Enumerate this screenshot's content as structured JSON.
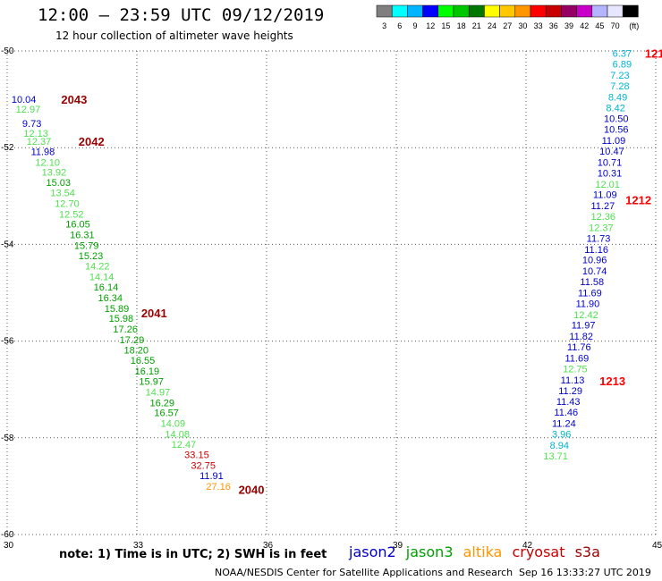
{
  "header": {
    "title": "12:00 – 23:59 UTC 09/12/2019",
    "subtitle": "12 hour collection of altimeter wave heights"
  },
  "colorbar": {
    "labels": [
      "3",
      "6",
      "9",
      "12",
      "15",
      "18",
      "21",
      "24",
      "27",
      "30",
      "33",
      "36",
      "39",
      "42",
      "45",
      "70",
      "(ft)"
    ],
    "colors": [
      "#7f7f7f",
      "#00ffff",
      "#00b4ff",
      "#0000ff",
      "#00ff00",
      "#00c800",
      "#007800",
      "#ffff00",
      "#ffc800",
      "#ff9600",
      "#ff0000",
      "#c80000",
      "#960064",
      "#c800c8",
      "#b4b4ff",
      "#e6e6ff",
      "#000000"
    ]
  },
  "footer": {
    "note": "note: 1) Time is in UTC; 2) SWH is in feet",
    "satellites": [
      {
        "name": "jason2",
        "color": "#0000cc"
      },
      {
        "name": "jason3",
        "color": "#00a000"
      },
      {
        "name": "altika",
        "color": "#ff9600"
      },
      {
        "name": "cryosat",
        "color": "#c80000"
      },
      {
        "name": "s3a",
        "color": "#960000"
      }
    ],
    "credit": "NOAA/NESDIS Center for Satellite Applications and Research",
    "generated": "Sep 16 13:33:27 UTC 2019"
  },
  "chart_data": {
    "type": "scatter",
    "xlim": [
      30,
      45
    ],
    "ylim": [
      -60,
      -50
    ],
    "x_ticks": [
      30,
      33,
      36,
      39,
      42,
      45
    ],
    "y_ticks": [
      -50,
      -52,
      -54,
      -56,
      -58,
      -60
    ],
    "grid": true,
    "track_labels": [
      {
        "text": "2043",
        "lon": 31.25,
        "lat": -51.0,
        "color": "#960000"
      },
      {
        "text": "2042",
        "lon": 31.65,
        "lat": -51.87,
        "color": "#960000"
      },
      {
        "text": "2041",
        "lon": 33.1,
        "lat": -55.42,
        "color": "#960000"
      },
      {
        "text": "2040",
        "lon": 35.35,
        "lat": -59.07,
        "color": "#960000"
      },
      {
        "text": "1212",
        "lon": 44.3,
        "lat": -53.08,
        "color": "#ff0000"
      },
      {
        "text": "1213",
        "lon": 43.7,
        "lat": -56.82,
        "color": "#ff0000"
      },
      {
        "text": "121",
        "lon": 44.75,
        "lat": -50.05,
        "color": "#ff0000"
      }
    ],
    "points": [
      {
        "v": "10.04",
        "lon": 30.1,
        "lat": -51.0,
        "color": "#0000cc"
      },
      {
        "v": "12.97",
        "lon": 30.2,
        "lat": -51.2,
        "color": "#50e050"
      },
      {
        "v": "9.73",
        "lon": 30.35,
        "lat": -51.5,
        "color": "#0000cc"
      },
      {
        "v": "12.13",
        "lon": 30.38,
        "lat": -51.7,
        "color": "#50e050"
      },
      {
        "v": "12.37",
        "lon": 30.45,
        "lat": -51.87,
        "color": "#50e050"
      },
      {
        "v": "11.98",
        "lon": 30.55,
        "lat": -52.08,
        "color": "#0000cc"
      },
      {
        "v": "12.10",
        "lon": 30.65,
        "lat": -52.3,
        "color": "#50e050"
      },
      {
        "v": "13.92",
        "lon": 30.8,
        "lat": -52.5,
        "color": "#50e050"
      },
      {
        "v": "15.03",
        "lon": 30.9,
        "lat": -52.72,
        "color": "#00a000"
      },
      {
        "v": "13.54",
        "lon": 31.0,
        "lat": -52.93,
        "color": "#50e050"
      },
      {
        "v": "12.70",
        "lon": 31.1,
        "lat": -53.15,
        "color": "#50e050"
      },
      {
        "v": "12.52",
        "lon": 31.2,
        "lat": -53.37,
        "color": "#50e050"
      },
      {
        "v": "16.05",
        "lon": 31.35,
        "lat": -53.58,
        "color": "#00a000"
      },
      {
        "v": "16.31",
        "lon": 31.45,
        "lat": -53.8,
        "color": "#00a000"
      },
      {
        "v": "15.79",
        "lon": 31.55,
        "lat": -54.02,
        "color": "#00a000"
      },
      {
        "v": "15.23",
        "lon": 31.65,
        "lat": -54.23,
        "color": "#00a000"
      },
      {
        "v": "14.22",
        "lon": 31.8,
        "lat": -54.45,
        "color": "#50e050"
      },
      {
        "v": "14.14",
        "lon": 31.9,
        "lat": -54.67,
        "color": "#50e050"
      },
      {
        "v": "16.14",
        "lon": 32.0,
        "lat": -54.88,
        "color": "#00a000"
      },
      {
        "v": "16.34",
        "lon": 32.1,
        "lat": -55.1,
        "color": "#00a000"
      },
      {
        "v": "15.89",
        "lon": 32.25,
        "lat": -55.32,
        "color": "#00a000"
      },
      {
        "v": "15.98",
        "lon": 32.35,
        "lat": -55.53,
        "color": "#00a000"
      },
      {
        "v": "17.26",
        "lon": 32.45,
        "lat": -55.75,
        "color": "#00a000"
      },
      {
        "v": "17.29",
        "lon": 32.6,
        "lat": -55.97,
        "color": "#00a000"
      },
      {
        "v": "18.20",
        "lon": 32.7,
        "lat": -56.18,
        "color": "#00a000"
      },
      {
        "v": "16.55",
        "lon": 32.85,
        "lat": -56.4,
        "color": "#00a000"
      },
      {
        "v": "16.19",
        "lon": 32.95,
        "lat": -56.62,
        "color": "#00a000"
      },
      {
        "v": "15.97",
        "lon": 33.05,
        "lat": -56.83,
        "color": "#00a000"
      },
      {
        "v": "14.97",
        "lon": 33.2,
        "lat": -57.05,
        "color": "#50e050"
      },
      {
        "v": "16.29",
        "lon": 33.3,
        "lat": -57.27,
        "color": "#00a000"
      },
      {
        "v": "16.57",
        "lon": 33.4,
        "lat": -57.48,
        "color": "#00a000"
      },
      {
        "v": "14.09",
        "lon": 33.55,
        "lat": -57.7,
        "color": "#50e050"
      },
      {
        "v": "14.08",
        "lon": 33.65,
        "lat": -57.92,
        "color": "#50e050"
      },
      {
        "v": "12.47",
        "lon": 33.8,
        "lat": -58.13,
        "color": "#50e050"
      },
      {
        "v": "33.15",
        "lon": 34.1,
        "lat": -58.35,
        "color": "#c80000"
      },
      {
        "v": "32.75",
        "lon": 34.25,
        "lat": -58.57,
        "color": "#c80000"
      },
      {
        "v": "11.91",
        "lon": 34.45,
        "lat": -58.78,
        "color": "#0000cc"
      },
      {
        "v": "27.16",
        "lon": 34.6,
        "lat": -59.0,
        "color": "#ff9600"
      },
      {
        "v": "6.37",
        "lon": 44.0,
        "lat": -50.05,
        "color": "#00b4d0"
      },
      {
        "v": "6.89",
        "lon": 44.0,
        "lat": -50.27,
        "color": "#00b4d0"
      },
      {
        "v": "7.23",
        "lon": 43.95,
        "lat": -50.5,
        "color": "#00b4d0"
      },
      {
        "v": "7.28",
        "lon": 43.95,
        "lat": -50.72,
        "color": "#00b4d0"
      },
      {
        "v": "8.49",
        "lon": 43.9,
        "lat": -50.95,
        "color": "#00b4d0"
      },
      {
        "v": "8.42",
        "lon": 43.85,
        "lat": -51.17,
        "color": "#00b4d0"
      },
      {
        "v": "10.50",
        "lon": 43.8,
        "lat": -51.4,
        "color": "#0000cc"
      },
      {
        "v": "10.56",
        "lon": 43.8,
        "lat": -51.62,
        "color": "#0000cc"
      },
      {
        "v": "11.09",
        "lon": 43.75,
        "lat": -51.85,
        "color": "#0000cc"
      },
      {
        "v": "10.47",
        "lon": 43.7,
        "lat": -52.07,
        "color": "#0000cc"
      },
      {
        "v": "10.71",
        "lon": 43.65,
        "lat": -52.3,
        "color": "#0000cc"
      },
      {
        "v": "10.31",
        "lon": 43.65,
        "lat": -52.52,
        "color": "#0000cc"
      },
      {
        "v": "12.01",
        "lon": 43.6,
        "lat": -52.75,
        "color": "#50e050"
      },
      {
        "v": "11.09",
        "lon": 43.55,
        "lat": -52.97,
        "color": "#0000cc"
      },
      {
        "v": "11.27",
        "lon": 43.5,
        "lat": -53.2,
        "color": "#0000cc"
      },
      {
        "v": "12.36",
        "lon": 43.5,
        "lat": -53.42,
        "color": "#50e050"
      },
      {
        "v": "12.37",
        "lon": 43.45,
        "lat": -53.65,
        "color": "#50e050"
      },
      {
        "v": "11.73",
        "lon": 43.4,
        "lat": -53.87,
        "color": "#0000cc"
      },
      {
        "v": "11.16",
        "lon": 43.35,
        "lat": -54.1,
        "color": "#0000cc"
      },
      {
        "v": "10.96",
        "lon": 43.3,
        "lat": -54.32,
        "color": "#0000cc"
      },
      {
        "v": "10.74",
        "lon": 43.3,
        "lat": -54.55,
        "color": "#0000cc"
      },
      {
        "v": "11.58",
        "lon": 43.25,
        "lat": -54.77,
        "color": "#0000cc"
      },
      {
        "v": "11.69",
        "lon": 43.2,
        "lat": -55.0,
        "color": "#0000cc"
      },
      {
        "v": "11.90",
        "lon": 43.15,
        "lat": -55.22,
        "color": "#0000cc"
      },
      {
        "v": "12.42",
        "lon": 43.1,
        "lat": -55.45,
        "color": "#50e050"
      },
      {
        "v": "11.97",
        "lon": 43.05,
        "lat": -55.67,
        "color": "#0000cc"
      },
      {
        "v": "11.82",
        "lon": 43.0,
        "lat": -55.9,
        "color": "#0000cc"
      },
      {
        "v": "11.76",
        "lon": 42.95,
        "lat": -56.12,
        "color": "#0000cc"
      },
      {
        "v": "11.69",
        "lon": 42.9,
        "lat": -56.35,
        "color": "#0000cc"
      },
      {
        "v": "12.75",
        "lon": 42.85,
        "lat": -56.57,
        "color": "#50e050"
      },
      {
        "v": "11.13",
        "lon": 42.8,
        "lat": -56.8,
        "color": "#0000cc"
      },
      {
        "v": "11.29",
        "lon": 42.75,
        "lat": -57.02,
        "color": "#0000cc"
      },
      {
        "v": "11.43",
        "lon": 42.7,
        "lat": -57.25,
        "color": "#0000cc"
      },
      {
        "v": "11.46",
        "lon": 42.65,
        "lat": -57.47,
        "color": "#0000cc"
      },
      {
        "v": "11.24",
        "lon": 42.6,
        "lat": -57.7,
        "color": "#0000cc"
      },
      {
        "v": "3.96",
        "lon": 42.6,
        "lat": -57.92,
        "color": "#00b4d0"
      },
      {
        "v": "8.94",
        "lon": 42.55,
        "lat": -58.15,
        "color": "#00b4d0"
      },
      {
        "v": "13.71",
        "lon": 42.4,
        "lat": -58.37,
        "color": "#50e050"
      }
    ]
  }
}
